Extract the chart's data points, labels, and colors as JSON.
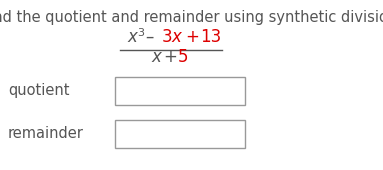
{
  "title": "Find the quotient and remainder using synthetic division.",
  "title_fontsize": 10.5,
  "label_quotient": "quotient",
  "label_remainder": "remainder",
  "label_fontsize": 10.5,
  "text_color": "#555555",
  "red_color": "#dd0000",
  "background_color": "#ffffff",
  "box_edge_color": "#999999",
  "fraction_line_color": "#555555",
  "num_gray": "x",
  "num_sup": "3",
  "num_red1": " – 3x + 13",
  "den_gray": "x + ",
  "den_red": "5",
  "fig_width": 3.83,
  "fig_height": 1.7,
  "dpi": 100
}
